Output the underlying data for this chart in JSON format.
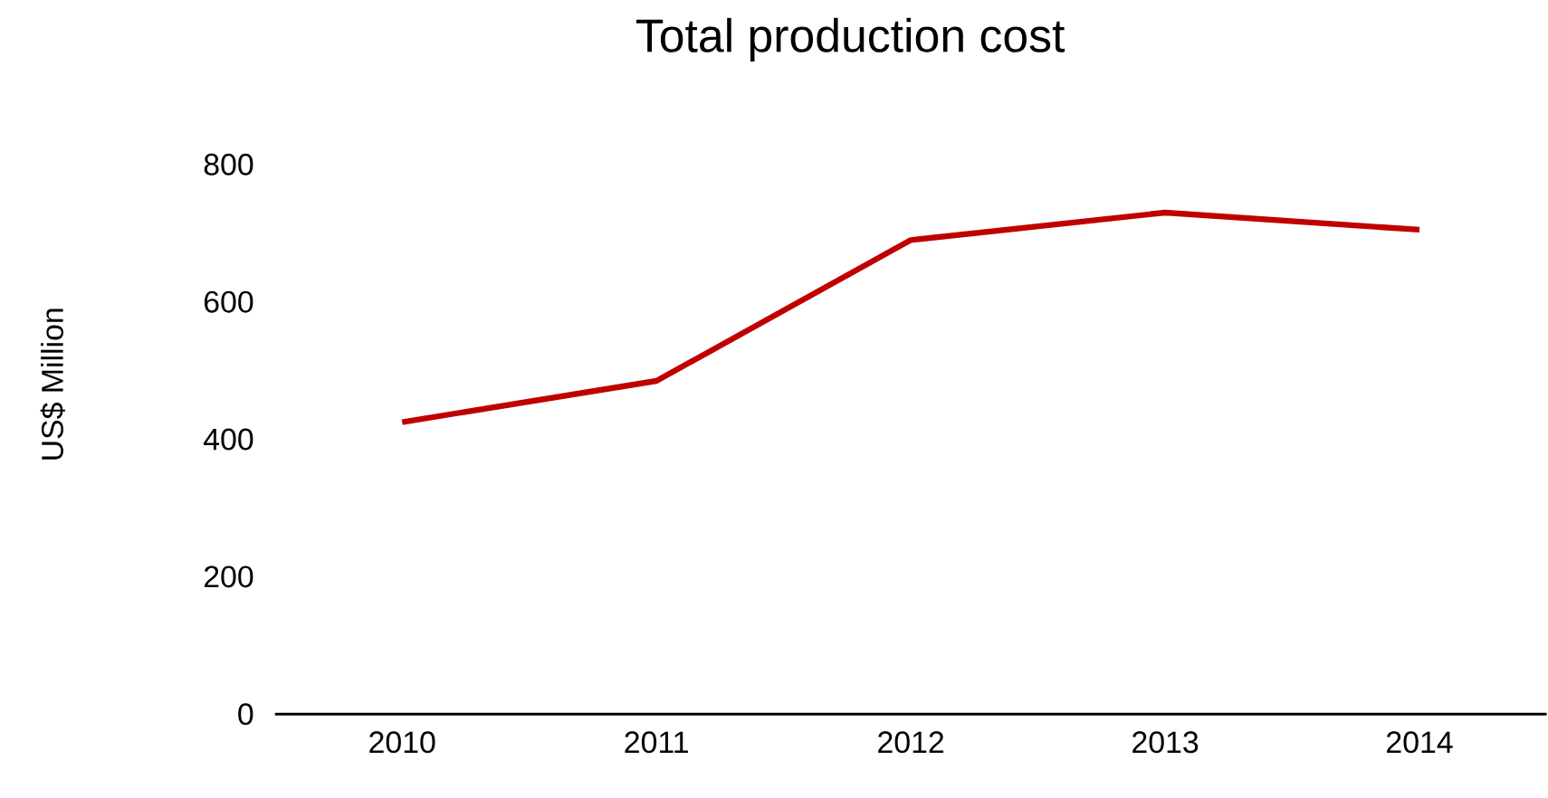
{
  "chart_data": {
    "type": "line",
    "title": "Total production cost",
    "ylabel": "US$ Million",
    "categories": [
      "2010",
      "2011",
      "2012",
      "2013",
      "2014"
    ],
    "series": [
      {
        "color": "#c00000",
        "values": [
          425,
          485,
          690,
          730,
          705
        ]
      }
    ],
    "ylim": [
      0,
      800
    ],
    "yticks": [
      0,
      200,
      400,
      600,
      800
    ],
    "grid": false,
    "marker": "none",
    "line_style": "solid"
  }
}
